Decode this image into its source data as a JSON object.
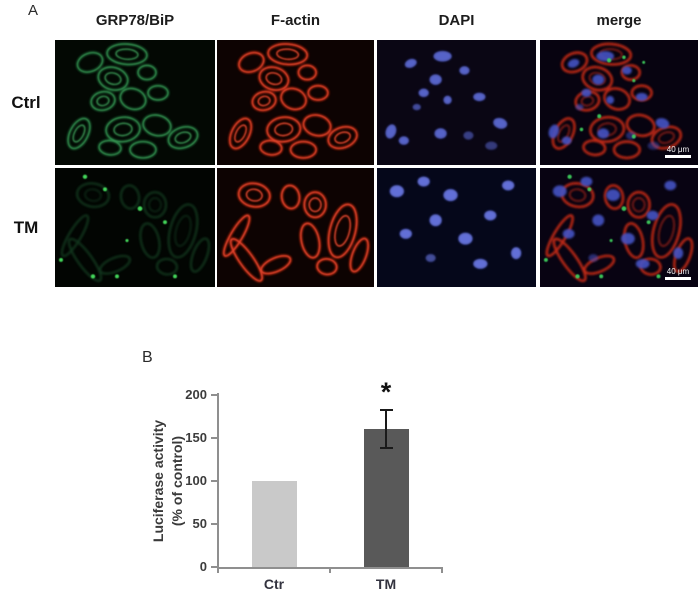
{
  "panel_a": {
    "label": "A",
    "column_headers": [
      "GRP78/BiP",
      "F-actin",
      "DAPI",
      "merge"
    ],
    "row_labels": [
      "Ctrl",
      "TM"
    ],
    "scale_bar_label": "40 μm",
    "channel_colors": {
      "grp78": "#35b45c",
      "factin": "#d93420",
      "dapi": "#4f5cd6"
    }
  },
  "panel_b": {
    "label": "B"
  },
  "chart_data": {
    "type": "bar",
    "title": "",
    "categories": [
      "Ctr",
      "TM"
    ],
    "values": [
      100,
      160
    ],
    "errors": [
      0,
      22
    ],
    "ylabel_line1": "Luciferase activity",
    "ylabel_line2": "(% of control)",
    "xlabel": "",
    "yticks": [
      0,
      50,
      100,
      150,
      200
    ],
    "ylim": [
      0,
      200
    ],
    "bar_colors": [
      "#c9c9c9",
      "#595959"
    ],
    "significance": {
      "category": "TM",
      "marker": "*"
    },
    "legend": "none",
    "grid": false
  }
}
